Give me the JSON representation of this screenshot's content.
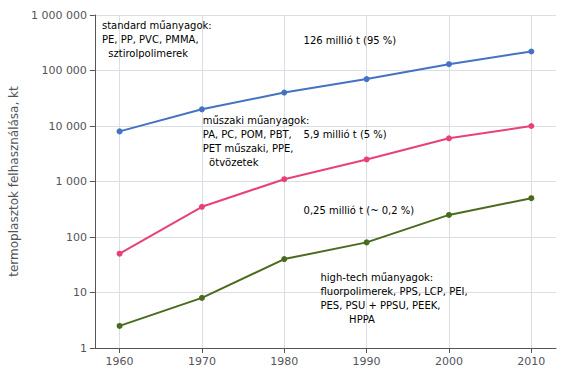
{
  "chart_data": {
    "type": "line",
    "ylabel": "termoplasztok felhasználása, kt",
    "x": [
      1960,
      1970,
      1980,
      1990,
      2000,
      2010
    ],
    "series": [
      {
        "color": "#4472c4",
        "marker": "circle",
        "values": [
          8000,
          20000,
          40000,
          70000,
          130000,
          220000
        ]
      },
      {
        "color": "#e8417a",
        "marker": "circle",
        "values": [
          50,
          350,
          1100,
          2500,
          6000,
          10000
        ]
      },
      {
        "color": "#4a6b1e",
        "marker": "circle",
        "values": [
          2.5,
          8,
          40,
          80,
          250,
          500
        ]
      }
    ],
    "log": "y",
    "xlim": [
      1957,
      2013
    ],
    "xticks": [
      1960,
      1970,
      1980,
      1990,
      2000,
      2010
    ],
    "ylim": [
      1,
      1000000
    ],
    "yticks": [
      1,
      10,
      100,
      {
        "value": 1000,
        "label": "1 000"
      },
      {
        "value": 10000,
        "label": "10 000"
      },
      {
        "value": 100000,
        "label": "100 000"
      },
      {
        "value": 1000000,
        "label": "1 000 000"
      }
    ],
    "grid": true,
    "annotations": [
      "standard műanyagok:\nPE, PP, PVC, PMMA,\n  sztirolpolimerek",
      "126 millió t (95 %)",
      "műszaki műanyagok:\nPA, PC, POM, PBT,\nPET műszaki, PPE,\n  ötvözetek",
      "5,9 millió t (5 %)",
      "high-tech műanyagok:\nfluorpolimerek, PPS, LCP, PEI,\nPES, PSU + PPSU, PEEK,\n         HPPA",
      "0,25 millió t (~ 0,2 %)"
    ]
  }
}
